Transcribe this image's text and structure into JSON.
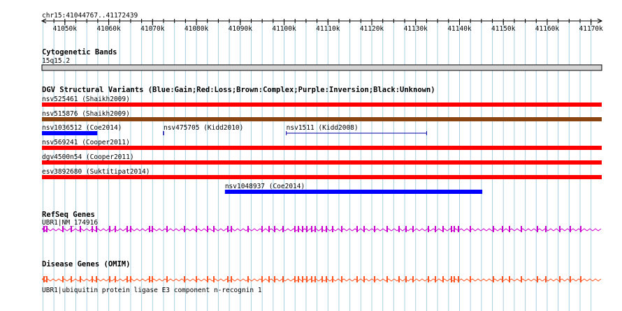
{
  "location": "chr15:41044767..41172439",
  "ruler": {
    "start": 41044767,
    "end": 41172439,
    "ticks": [
      "41050k",
      "41060k",
      "41070k",
      "41080k",
      "41090k",
      "41100k",
      "41110k",
      "41120k",
      "41130k",
      "41140k",
      "41150k",
      "41160k",
      "41170k"
    ],
    "tick_values": [
      41050000,
      41060000,
      41070000,
      41080000,
      41090000,
      41100000,
      41110000,
      41120000,
      41130000,
      41140000,
      41150000,
      41160000,
      41170000
    ]
  },
  "cyto": {
    "title": "Cytogenetic Bands",
    "band": "15q15.2"
  },
  "dgv": {
    "title": "DGV Structural Variants (Blue:Gain;Red:Loss;Brown:Complex;Purple:Inversion;Black:Unknown)",
    "colors": {
      "gain": "#0000ff",
      "loss": "#ff0000",
      "complex": "#8b4513",
      "outline": "#0000a0"
    },
    "variants": [
      {
        "name": "nsv525461 (Shaikh2009)",
        "type": "loss",
        "start": 41044767,
        "end": 41172439,
        "style": "thick"
      },
      {
        "name": "nsv515876 (Shaikh2009)",
        "type": "complex",
        "start": 41044767,
        "end": 41172439,
        "style": "thick"
      },
      {
        "name": "nsv1036512 (Coe2014)",
        "type": "gain",
        "start": 41044767,
        "end": 41057400,
        "style": "thick"
      },
      {
        "name": "nsv475705 (Kidd2010)",
        "type": "outline",
        "start": 41072500,
        "end": 41072600,
        "style": "thin"
      },
      {
        "name": "nsv1511 (Kidd2008)",
        "type": "outline",
        "start": 41100500,
        "end": 41132500,
        "style": "thin"
      },
      {
        "name": "nsv569241 (Cooper2011)",
        "type": "loss",
        "start": 41044767,
        "end": 41172439,
        "style": "thick"
      },
      {
        "name": "dgv4500n54 (Cooper2011)",
        "type": "loss",
        "start": 41044767,
        "end": 41172439,
        "style": "thick"
      },
      {
        "name": "esv3892680 (Suktitipat2014)",
        "type": "loss",
        "start": 41044767,
        "end": 41172439,
        "style": "thick"
      },
      {
        "name": "nsv1048937 (Coe2014)",
        "type": "gain",
        "start": 41086500,
        "end": 41145200,
        "style": "thick"
      }
    ]
  },
  "refseq": {
    "title": "RefSeq Genes",
    "gene": "UBR1|NM_174916",
    "color": "#cc00cc"
  },
  "omim": {
    "title": "Disease Genes (OMIM)",
    "gene": "UBR1|ubiquitin protein ligase E3 component n-recognin 1",
    "color": "#ff5522",
    "label_color": "#0000aa"
  },
  "colors": {
    "grid": "#a8d0e0",
    "cyto_fill": "#d3d3d3"
  }
}
